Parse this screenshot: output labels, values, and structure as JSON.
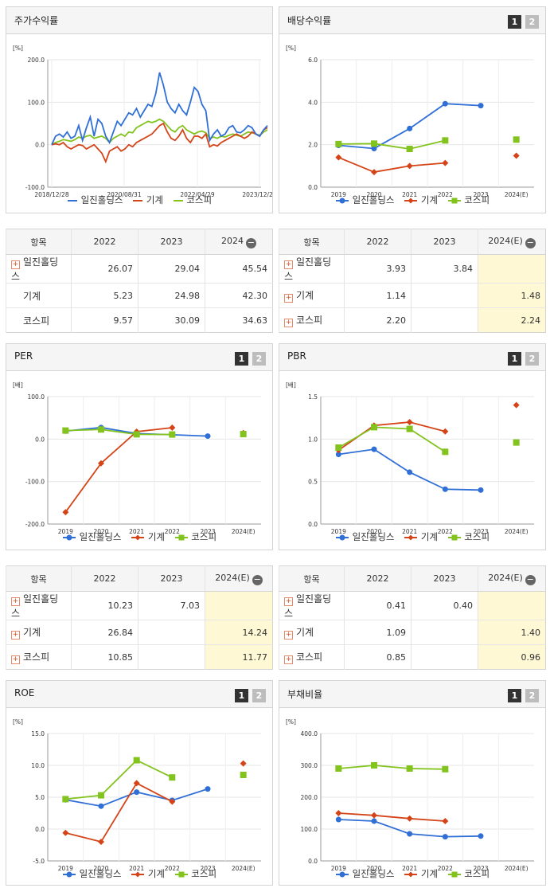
{
  "colors": {
    "company": "#2f6fd6",
    "industry": "#d44418",
    "kospi": "#82c31d"
  },
  "legend": {
    "company": "일진홀딩스",
    "industry": "기계",
    "kospi": "코스피"
  },
  "pagers": {
    "p1": "1",
    "p2": "2"
  },
  "stock_return": {
    "title": "주가수익률",
    "table": {
      "col_item": "항목",
      "cols": [
        "2022",
        "2023",
        "2024"
      ],
      "rows": [
        {
          "name": "일진홀딩스",
          "vals": [
            "26.07",
            "29.04",
            "45.54"
          ]
        },
        {
          "name": "기계",
          "vals": [
            "5.23",
            "24.98",
            "42.30"
          ]
        },
        {
          "name": "코스피",
          "vals": [
            "9.57",
            "30.09",
            "34.63"
          ]
        }
      ]
    }
  },
  "dividend_yield": {
    "title": "배당수익률",
    "table": {
      "col_item": "항목",
      "cols": [
        "2022",
        "2023",
        "2024(E)"
      ],
      "rows": [
        {
          "name": "일진홀딩스",
          "vals": [
            "3.93",
            "3.84",
            ""
          ]
        },
        {
          "name": "기계",
          "vals": [
            "1.14",
            "",
            "1.48"
          ]
        },
        {
          "name": "코스피",
          "vals": [
            "2.20",
            "",
            "2.24"
          ]
        }
      ]
    }
  },
  "per": {
    "title": "PER",
    "table": {
      "col_item": "항목",
      "cols": [
        "2022",
        "2023",
        "2024(E)"
      ],
      "rows": [
        {
          "name": "일진홀딩스",
          "vals": [
            "10.23",
            "7.03",
            ""
          ]
        },
        {
          "name": "기계",
          "vals": [
            "26.84",
            "",
            "14.24"
          ]
        },
        {
          "name": "코스피",
          "vals": [
            "10.85",
            "",
            "11.77"
          ]
        }
      ]
    }
  },
  "pbr": {
    "title": "PBR",
    "table": {
      "col_item": "항목",
      "cols": [
        "2022",
        "2023",
        "2024(E)"
      ],
      "rows": [
        {
          "name": "일진홀딩스",
          "vals": [
            "0.41",
            "0.40",
            ""
          ]
        },
        {
          "name": "기계",
          "vals": [
            "1.09",
            "",
            "1.40"
          ]
        },
        {
          "name": "코스피",
          "vals": [
            "0.85",
            "",
            "0.96"
          ]
        }
      ]
    }
  },
  "roe": {
    "title": "ROE"
  },
  "debt_ratio": {
    "title": "부채비율"
  },
  "chart_data": [
    {
      "id": "stock",
      "type": "line",
      "ylabel": "[%]",
      "ylim": [
        -100,
        200
      ],
      "yticks": [
        "200.0",
        "100.0",
        "0.0",
        "-100.0"
      ],
      "xticks": [
        "2018/12/28",
        "2020/08/31",
        "2022/04/29",
        "2023/12/28"
      ],
      "series": [
        {
          "name": "일진홀딩스",
          "key": "company",
          "values": [
            0,
            20,
            25,
            18,
            30,
            15,
            20,
            45,
            10,
            40,
            65,
            20,
            60,
            50,
            20,
            5,
            30,
            55,
            45,
            60,
            75,
            70,
            85,
            65,
            80,
            95,
            90,
            120,
            170,
            140,
            100,
            85,
            75,
            95,
            80,
            70,
            100,
            135,
            125,
            95,
            80,
            10,
            25,
            35,
            20,
            25,
            40,
            45,
            30,
            28,
            35,
            45,
            40,
            25,
            20,
            35,
            45
          ]
        },
        {
          "name": "기계",
          "key": "industry",
          "values": [
            0,
            2,
            0,
            5,
            -5,
            -10,
            -5,
            0,
            -2,
            -10,
            -5,
            0,
            -10,
            -20,
            -40,
            -15,
            -10,
            -5,
            -15,
            -10,
            0,
            -5,
            5,
            10,
            15,
            20,
            25,
            35,
            45,
            50,
            30,
            15,
            10,
            20,
            35,
            15,
            5,
            20,
            20,
            15,
            25,
            -5,
            0,
            -3,
            5,
            10,
            15,
            20,
            25,
            20,
            15,
            20,
            30,
            25,
            20,
            35,
            40
          ]
        },
        {
          "name": "코스피",
          "key": "kospi",
          "values": [
            0,
            5,
            8,
            12,
            10,
            8,
            12,
            18,
            15,
            20,
            22,
            15,
            18,
            20,
            15,
            5,
            15,
            20,
            25,
            20,
            30,
            28,
            40,
            45,
            50,
            55,
            52,
            55,
            60,
            55,
            45,
            35,
            30,
            40,
            45,
            35,
            30,
            25,
            30,
            32,
            28,
            15,
            18,
            15,
            20,
            18,
            22,
            25,
            22,
            20,
            25,
            30,
            28,
            25,
            22,
            30,
            35
          ]
        }
      ]
    },
    {
      "id": "dividend",
      "type": "line",
      "ylabel": "[%]",
      "ylim": [
        0,
        6
      ],
      "yticks": [
        "6.0",
        "4.0",
        "2.0",
        "0.0"
      ],
      "categories": [
        "2019",
        "2020",
        "2021",
        "2022",
        "2023",
        "2024(E)"
      ],
      "series": [
        {
          "name": "일진홀딩스",
          "key": "company",
          "values": [
            1.97,
            1.82,
            2.76,
            3.93,
            3.84,
            null
          ]
        },
        {
          "name": "기계",
          "key": "industry",
          "values": [
            1.4,
            0.71,
            1.0,
            1.14,
            null,
            1.48
          ]
        },
        {
          "name": "코스피",
          "key": "kospi",
          "values": [
            2.03,
            2.05,
            1.8,
            2.2,
            null,
            2.24
          ]
        }
      ]
    },
    {
      "id": "per",
      "type": "line",
      "ylabel": "[배]",
      "ylim": [
        -200,
        100
      ],
      "yticks": [
        "100.0",
        "0.0",
        "-100.0",
        "-200.0"
      ],
      "categories": [
        "2019",
        "2020",
        "2021",
        "2022",
        "2023",
        "2024(E)"
      ],
      "series": [
        {
          "name": "일진홀딩스",
          "key": "company",
          "values": [
            18.9,
            27.2,
            13.0,
            10.23,
            7.03,
            null
          ]
        },
        {
          "name": "기계",
          "key": "industry",
          "values": [
            -172,
            -57,
            17.5,
            26.84,
            null,
            14.24
          ]
        },
        {
          "name": "코스피",
          "key": "kospi",
          "values": [
            20.1,
            22.6,
            11.2,
            10.85,
            null,
            11.77
          ]
        }
      ]
    },
    {
      "id": "pbr",
      "type": "line",
      "ylabel": "[배]",
      "ylim": [
        0,
        1.5
      ],
      "yticks": [
        "1.5",
        "1.0",
        "0.5",
        "0.0"
      ],
      "categories": [
        "2019",
        "2020",
        "2021",
        "2022",
        "2023",
        "2024(E)"
      ],
      "series": [
        {
          "name": "일진홀딩스",
          "key": "company",
          "values": [
            0.82,
            0.88,
            0.61,
            0.41,
            0.4,
            null
          ]
        },
        {
          "name": "기계",
          "key": "industry",
          "values": [
            0.87,
            1.16,
            1.2,
            1.09,
            null,
            1.4
          ]
        },
        {
          "name": "코스피",
          "key": "kospi",
          "values": [
            0.9,
            1.14,
            1.12,
            0.85,
            null,
            0.96
          ]
        }
      ]
    },
    {
      "id": "roe",
      "type": "line",
      "ylabel": "[%]",
      "ylim": [
        -5,
        15
      ],
      "yticks": [
        "15.0",
        "10.0",
        "5.0",
        "0.0",
        "-5.0"
      ],
      "categories": [
        "2019",
        "2020",
        "2021",
        "2022",
        "2023",
        "2024(E)"
      ],
      "series": [
        {
          "name": "일진홀딩스",
          "key": "company",
          "values": [
            4.6,
            3.6,
            5.8,
            4.5,
            6.3,
            null
          ]
        },
        {
          "name": "기계",
          "key": "industry",
          "values": [
            -0.6,
            -2.0,
            7.2,
            4.3,
            null,
            10.3
          ]
        },
        {
          "name": "코스피",
          "key": "kospi",
          "values": [
            4.7,
            5.3,
            10.8,
            8.1,
            null,
            8.5
          ]
        }
      ]
    },
    {
      "id": "debt",
      "type": "line",
      "ylabel": "[%]",
      "ylim": [
        0,
        400
      ],
      "yticks": [
        "400.0",
        "300.0",
        "200.0",
        "100.0",
        "0.0"
      ],
      "categories": [
        "2019",
        "2020",
        "2021",
        "2022",
        "2023",
        "2024(E)"
      ],
      "series": [
        {
          "name": "일진홀딩스",
          "key": "company",
          "values": [
            130,
            125,
            85,
            76,
            78,
            null
          ]
        },
        {
          "name": "기계",
          "key": "industry",
          "values": [
            150,
            143,
            133,
            125,
            null,
            null
          ]
        },
        {
          "name": "코스피",
          "key": "kospi",
          "values": [
            290,
            300,
            290,
            288,
            null,
            null
          ]
        }
      ]
    }
  ]
}
